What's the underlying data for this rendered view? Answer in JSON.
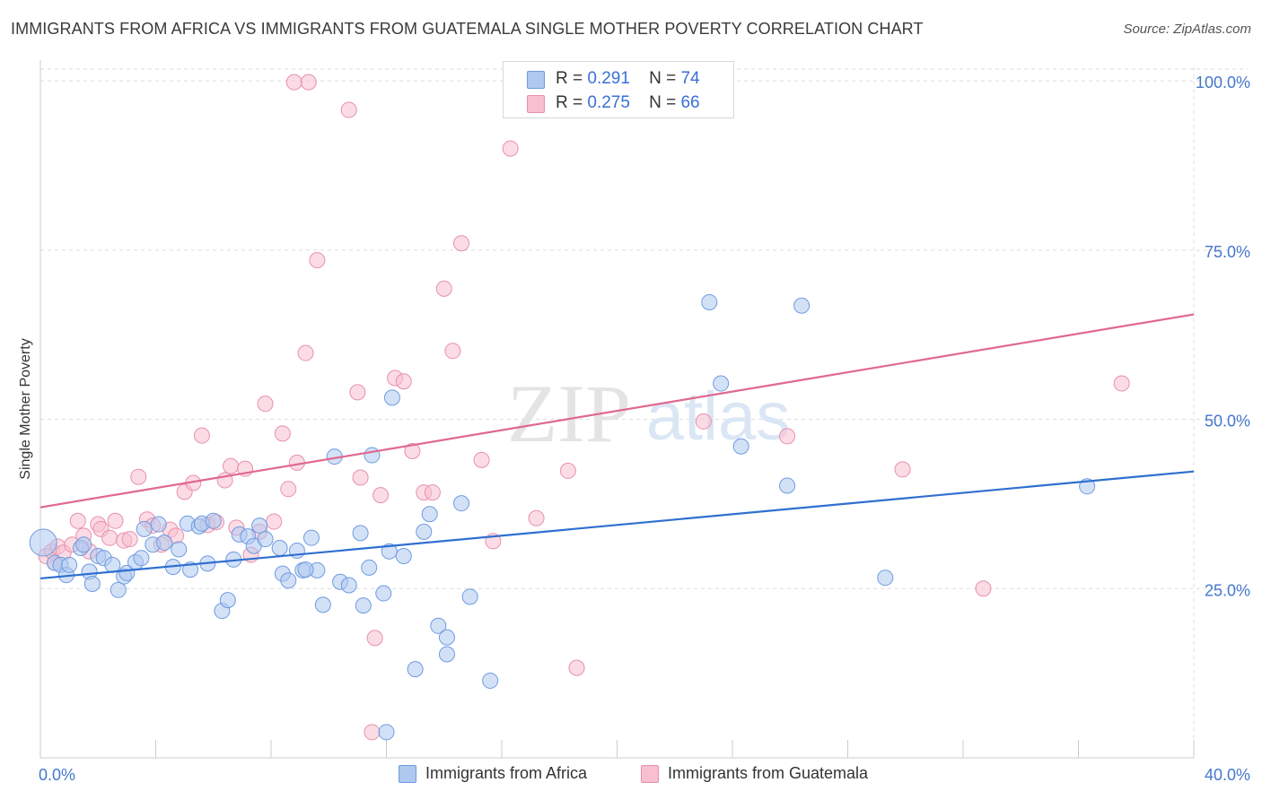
{
  "title": "IMMIGRANTS FROM AFRICA VS IMMIGRANTS FROM GUATEMALA SINGLE MOTHER POVERTY CORRELATION CHART",
  "source": "Source: ZipAtlas.com",
  "watermark": {
    "zip": "ZIP",
    "atlas": "atlas"
  },
  "legend": {
    "rows": [
      {
        "r_label": "R =",
        "r_value": "0.291",
        "n_label": "N =",
        "n_value": "74"
      },
      {
        "r_label": "R =",
        "r_value": "0.275",
        "n_label": "N =",
        "n_value": "66"
      }
    ]
  },
  "colors": {
    "africa_fill": "#aec8f0",
    "africa_stroke": "#6f9be0",
    "africa_line": "#2f6fd0",
    "guatemala_fill": "#f7bfd0",
    "guatemala_stroke": "#e890ad",
    "guatemala_line": "#e0688f",
    "grid": "#dddddd",
    "tick_label": "#4477cc"
  },
  "chart_data": {
    "type": "scatter",
    "title": "IMMIGRANTS FROM AFRICA VS IMMIGRANTS FROM GUATEMALA SINGLE MOTHER POVERTY CORRELATION CHART",
    "xlabel": "",
    "ylabel": "Single Mother Poverty",
    "xlim": [
      0,
      40
    ],
    "ylim": [
      0,
      102
    ],
    "x_tick_labels": [
      "0.0%",
      "40.0%"
    ],
    "y_ticks": [
      25,
      50,
      75,
      100
    ],
    "y_tick_labels": [
      "25.0%",
      "50.0%",
      "75.0%",
      "100.0%"
    ],
    "grid": true,
    "legend_position": "top-center",
    "series": [
      {
        "name": "Immigrants from Africa",
        "r": 0.291,
        "n": 74,
        "trend": {
          "x": [
            0,
            40
          ],
          "y": [
            26.5,
            42.3
          ]
        },
        "points": [
          [
            0.1,
            31.8
          ],
          [
            0.5,
            28.8
          ],
          [
            0.7,
            28.5
          ],
          [
            0.9,
            27.0
          ],
          [
            1.0,
            28.5
          ],
          [
            1.4,
            31.0
          ],
          [
            1.5,
            31.5
          ],
          [
            1.7,
            27.5
          ],
          [
            1.8,
            25.7
          ],
          [
            2.0,
            29.8
          ],
          [
            2.2,
            29.5
          ],
          [
            2.5,
            28.5
          ],
          [
            2.7,
            24.8
          ],
          [
            2.9,
            26.8
          ],
          [
            3.0,
            27.3
          ],
          [
            3.3,
            28.9
          ],
          [
            3.5,
            29.5
          ],
          [
            3.6,
            33.8
          ],
          [
            3.9,
            31.5
          ],
          [
            4.1,
            34.5
          ],
          [
            4.3,
            31.8
          ],
          [
            4.6,
            28.2
          ],
          [
            4.8,
            30.8
          ],
          [
            5.1,
            34.6
          ],
          [
            5.2,
            27.8
          ],
          [
            5.5,
            34.2
          ],
          [
            5.6,
            34.6
          ],
          [
            5.8,
            28.7
          ],
          [
            6.0,
            35.0
          ],
          [
            6.3,
            21.7
          ],
          [
            6.5,
            23.3
          ],
          [
            6.7,
            29.3
          ],
          [
            6.9,
            33.0
          ],
          [
            7.2,
            32.7
          ],
          [
            7.4,
            31.3
          ],
          [
            7.6,
            34.3
          ],
          [
            7.8,
            32.3
          ],
          [
            8.3,
            31.0
          ],
          [
            8.4,
            27.2
          ],
          [
            8.6,
            26.2
          ],
          [
            8.9,
            30.6
          ],
          [
            9.1,
            27.7
          ],
          [
            9.4,
            32.5
          ],
          [
            9.6,
            27.7
          ],
          [
            9.8,
            22.6
          ],
          [
            10.2,
            44.5
          ],
          [
            10.4,
            26.0
          ],
          [
            10.7,
            25.5
          ],
          [
            11.1,
            33.2
          ],
          [
            11.2,
            22.5
          ],
          [
            11.4,
            28.1
          ],
          [
            11.5,
            44.7
          ],
          [
            11.9,
            24.3
          ],
          [
            12.1,
            30.5
          ],
          [
            12.2,
            53.2
          ],
          [
            12.6,
            29.8
          ],
          [
            13.0,
            13.1
          ],
          [
            13.3,
            33.4
          ],
          [
            13.5,
            36.0
          ],
          [
            13.8,
            19.5
          ],
          [
            14.1,
            17.8
          ],
          [
            14.1,
            15.3
          ],
          [
            14.6,
            37.6
          ],
          [
            14.9,
            23.8
          ],
          [
            15.6,
            11.4
          ],
          [
            23.2,
            67.3
          ],
          [
            23.6,
            55.3
          ],
          [
            24.3,
            46.0
          ],
          [
            25.9,
            40.2
          ],
          [
            26.4,
            66.8
          ],
          [
            29.3,
            26.6
          ],
          [
            36.3,
            40.1
          ],
          [
            12.0,
            3.8
          ],
          [
            9.2,
            27.8
          ]
        ]
      },
      {
        "name": "Immigrants from Guatemala",
        "r": 0.275,
        "n": 66,
        "trend": {
          "x": [
            0,
            40
          ],
          "y": [
            37.0,
            65.5
          ]
        },
        "points": [
          [
            0.2,
            29.8
          ],
          [
            0.4,
            30.5
          ],
          [
            0.5,
            28.8
          ],
          [
            0.6,
            31.2
          ],
          [
            0.8,
            30.3
          ],
          [
            1.1,
            31.5
          ],
          [
            1.3,
            35.0
          ],
          [
            1.5,
            32.8
          ],
          [
            1.7,
            30.5
          ],
          [
            2.0,
            34.5
          ],
          [
            2.1,
            33.8
          ],
          [
            2.4,
            32.5
          ],
          [
            2.6,
            35.0
          ],
          [
            2.9,
            32.1
          ],
          [
            3.1,
            32.3
          ],
          [
            3.4,
            41.5
          ],
          [
            3.7,
            35.2
          ],
          [
            3.9,
            34.3
          ],
          [
            4.2,
            31.5
          ],
          [
            4.5,
            33.7
          ],
          [
            4.7,
            32.8
          ],
          [
            5.0,
            39.3
          ],
          [
            5.3,
            40.6
          ],
          [
            5.6,
            47.6
          ],
          [
            5.8,
            34.4
          ],
          [
            6.1,
            34.8
          ],
          [
            6.4,
            41.0
          ],
          [
            6.6,
            43.1
          ],
          [
            6.8,
            34.0
          ],
          [
            7.1,
            42.7
          ],
          [
            7.3,
            30.0
          ],
          [
            7.6,
            33.4
          ],
          [
            7.8,
            52.3
          ],
          [
            8.1,
            34.9
          ],
          [
            8.4,
            47.9
          ],
          [
            8.6,
            39.7
          ],
          [
            8.9,
            43.6
          ],
          [
            9.2,
            59.8
          ],
          [
            9.6,
            73.5
          ],
          [
            9.3,
            99.8
          ],
          [
            11.0,
            54.0
          ],
          [
            11.1,
            41.4
          ],
          [
            11.6,
            17.7
          ],
          [
            11.8,
            38.8
          ],
          [
            12.3,
            56.1
          ],
          [
            12.6,
            55.6
          ],
          [
            12.9,
            45.3
          ],
          [
            13.3,
            39.2
          ],
          [
            13.6,
            39.2
          ],
          [
            14.0,
            69.3
          ],
          [
            14.3,
            60.1
          ],
          [
            14.6,
            76.0
          ],
          [
            15.3,
            44.0
          ],
          [
            15.7,
            32.0
          ],
          [
            16.3,
            90.0
          ],
          [
            17.2,
            35.4
          ],
          [
            18.3,
            42.4
          ],
          [
            18.6,
            13.3
          ],
          [
            23.0,
            49.7
          ],
          [
            25.9,
            47.5
          ],
          [
            29.9,
            42.6
          ],
          [
            32.7,
            25.0
          ],
          [
            37.5,
            55.3
          ],
          [
            11.5,
            3.8
          ],
          [
            10.7,
            95.7
          ],
          [
            8.8,
            99.8
          ]
        ]
      }
    ]
  },
  "bottom_legend": [
    {
      "label": "Immigrants from Africa"
    },
    {
      "label": "Immigrants from Guatemala"
    }
  ]
}
